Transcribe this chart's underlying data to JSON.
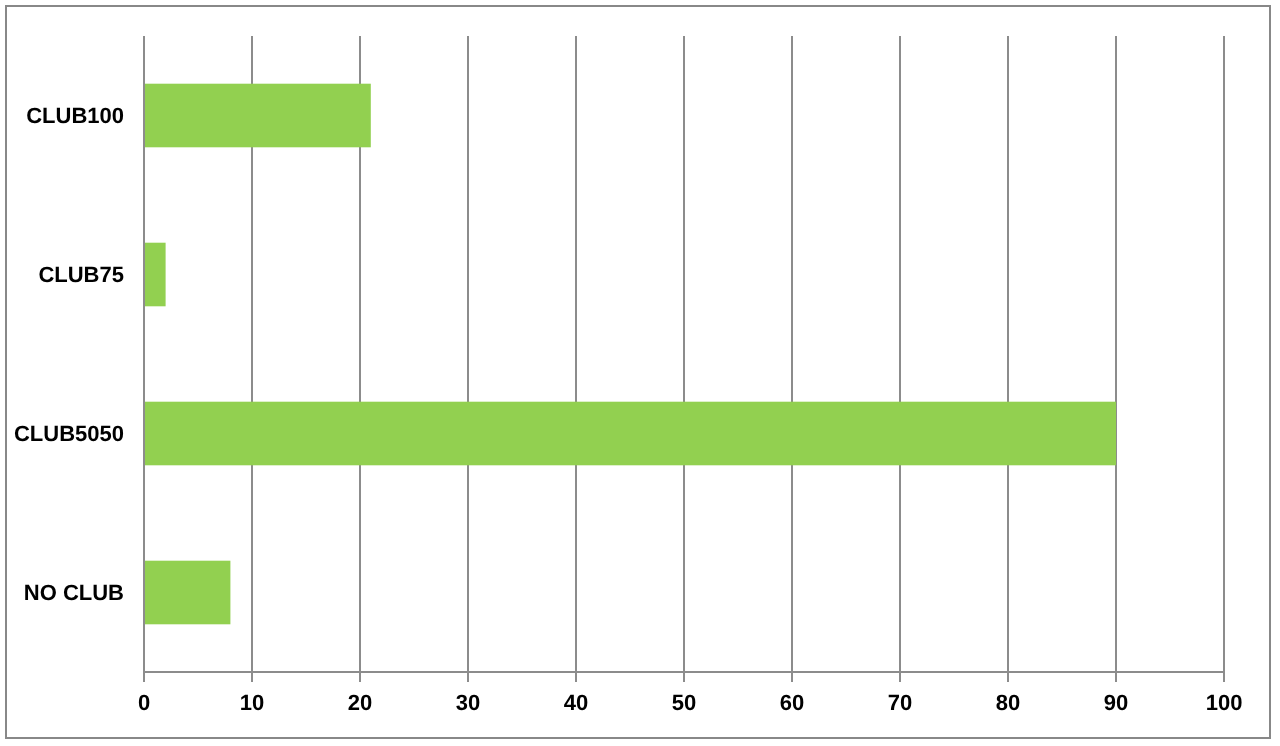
{
  "chart_data": {
    "type": "bar",
    "orientation": "horizontal",
    "categories": [
      "CLUB100",
      "CLUB75",
      "CLUB5050",
      "NO CLUB"
    ],
    "values": [
      21,
      2,
      90,
      8
    ],
    "color": "#92d050",
    "xlim": [
      0,
      100
    ],
    "xticks": [
      0,
      10,
      20,
      30,
      40,
      50,
      60,
      70,
      80,
      90,
      100
    ],
    "grid": "x"
  }
}
